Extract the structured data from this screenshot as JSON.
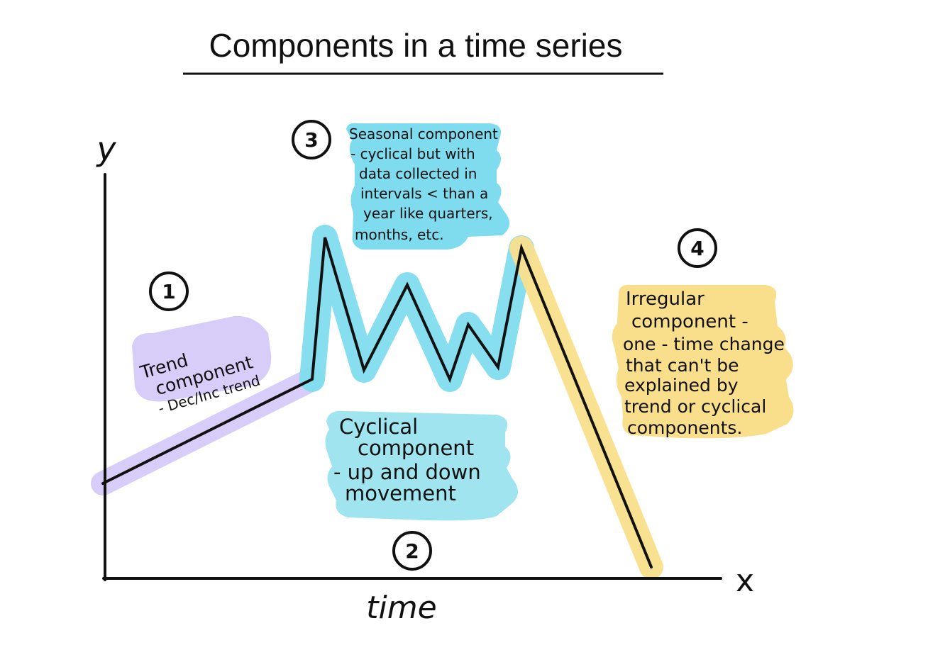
{
  "title": "Components in a time series",
  "axes": {
    "y_label": "y",
    "x_label": "x",
    "time_label": "time"
  },
  "markers": [
    "1",
    "2",
    "3",
    "4"
  ],
  "notes": {
    "trend": [
      "Trend",
      "component",
      "- Dec/Inc trend"
    ],
    "seasonal": [
      "Seasonal component",
      "- cyclical but with",
      "data collected in",
      "intervals < than a",
      "year like quarters,",
      "months, etc."
    ],
    "cyclical": [
      "Cyclical",
      "component",
      "- up and down",
      "movement"
    ],
    "irregular": [
      "Irregular",
      "component -",
      "one - time change",
      "that can't be",
      "explained by",
      "trend or cyclical",
      "components."
    ]
  },
  "colors": {
    "trend": "#d8cdf8",
    "seasonal": "#7fdcee",
    "cyclical": "#5fd2e8",
    "irregular": "#f9df8c",
    "ink": "#111111"
  }
}
